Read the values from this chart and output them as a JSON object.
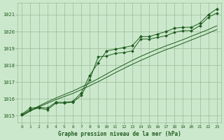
{
  "x": [
    0,
    1,
    2,
    3,
    4,
    5,
    6,
    7,
    8,
    9,
    10,
    11,
    12,
    13,
    14,
    15,
    16,
    17,
    18,
    19,
    20,
    21,
    22,
    23
  ],
  "line_main_markers": [
    1015.1,
    1015.45,
    1015.5,
    1015.45,
    1015.8,
    1015.8,
    1015.85,
    1016.35,
    1017.4,
    1018.15,
    1018.85,
    1018.95,
    1019.05,
    1019.15,
    1019.7,
    1019.7,
    1019.85,
    1020.0,
    1020.2,
    1020.25,
    1020.25,
    1020.5,
    1021.0,
    1021.35
  ],
  "line_secondary_markers": [
    1015.05,
    1015.35,
    1015.45,
    1015.35,
    1015.75,
    1015.75,
    1015.8,
    1016.2,
    1017.15,
    1018.5,
    1018.55,
    1018.7,
    1018.75,
    1018.85,
    1019.55,
    1019.55,
    1019.65,
    1019.75,
    1019.95,
    1020.05,
    1020.05,
    1020.35,
    1020.85,
    1021.1
  ],
  "line_smooth1": [
    1015.0,
    1015.28,
    1015.52,
    1015.74,
    1015.95,
    1016.14,
    1016.32,
    1016.55,
    1016.78,
    1017.02,
    1017.28,
    1017.55,
    1017.8,
    1018.05,
    1018.28,
    1018.5,
    1018.72,
    1018.92,
    1019.1,
    1019.3,
    1019.5,
    1019.7,
    1019.9,
    1020.12
  ],
  "line_smooth2": [
    1015.0,
    1015.3,
    1015.58,
    1015.82,
    1016.05,
    1016.26,
    1016.46,
    1016.7,
    1016.94,
    1017.2,
    1017.48,
    1017.76,
    1018.02,
    1018.28,
    1018.52,
    1018.74,
    1018.95,
    1019.15,
    1019.33,
    1019.52,
    1019.72,
    1019.92,
    1020.12,
    1020.34
  ],
  "bg_color": "#cce8cc",
  "grid_color": "#99bb99",
  "line_color": "#1e5c1e",
  "text_color": "#1e5c1e",
  "xlabel": "Graphe pression niveau de la mer (hPa)",
  "ylim": [
    1014.6,
    1021.7
  ],
  "yticks": [
    1015,
    1016,
    1017,
    1018,
    1019,
    1020,
    1021
  ],
  "xticks": [
    0,
    1,
    2,
    3,
    4,
    5,
    6,
    7,
    8,
    9,
    10,
    11,
    12,
    13,
    14,
    15,
    16,
    17,
    18,
    19,
    20,
    21,
    22,
    23
  ]
}
